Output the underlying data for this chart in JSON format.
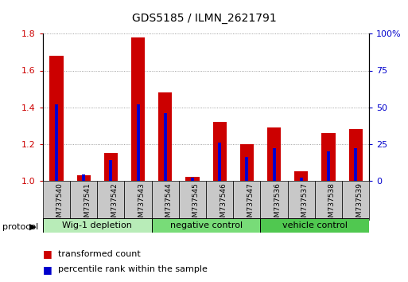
{
  "title": "GDS5185 / ILMN_2621791",
  "samples": [
    "GSM737540",
    "GSM737541",
    "GSM737542",
    "GSM737543",
    "GSM737544",
    "GSM737545",
    "GSM737546",
    "GSM737547",
    "GSM737536",
    "GSM737537",
    "GSM737538",
    "GSM737539"
  ],
  "red_values": [
    1.68,
    1.03,
    1.15,
    1.78,
    1.48,
    1.02,
    1.32,
    1.2,
    1.29,
    1.05,
    1.26,
    1.28
  ],
  "blue_pct": [
    52,
    4,
    14,
    52,
    46,
    2,
    26,
    16,
    22,
    2,
    20,
    22
  ],
  "groups": [
    {
      "label": "Wig-1 depletion",
      "start": 0,
      "end": 4
    },
    {
      "label": "negative control",
      "start": 4,
      "end": 8
    },
    {
      "label": "vehicle control",
      "start": 8,
      "end": 12
    }
  ],
  "group_colors": [
    "#b8ecb8",
    "#78dc78",
    "#50c850"
  ],
  "ylim_left": [
    1.0,
    1.8
  ],
  "ylim_right": [
    0,
    100
  ],
  "yticks_left": [
    1.0,
    1.2,
    1.4,
    1.6,
    1.8
  ],
  "yticks_right": [
    0,
    25,
    50,
    75,
    100
  ],
  "left_color": "#cc0000",
  "right_color": "#0000cc",
  "red_bar_width": 0.5,
  "blue_bar_width": 0.12,
  "sample_box_color": "#c8c8c8"
}
